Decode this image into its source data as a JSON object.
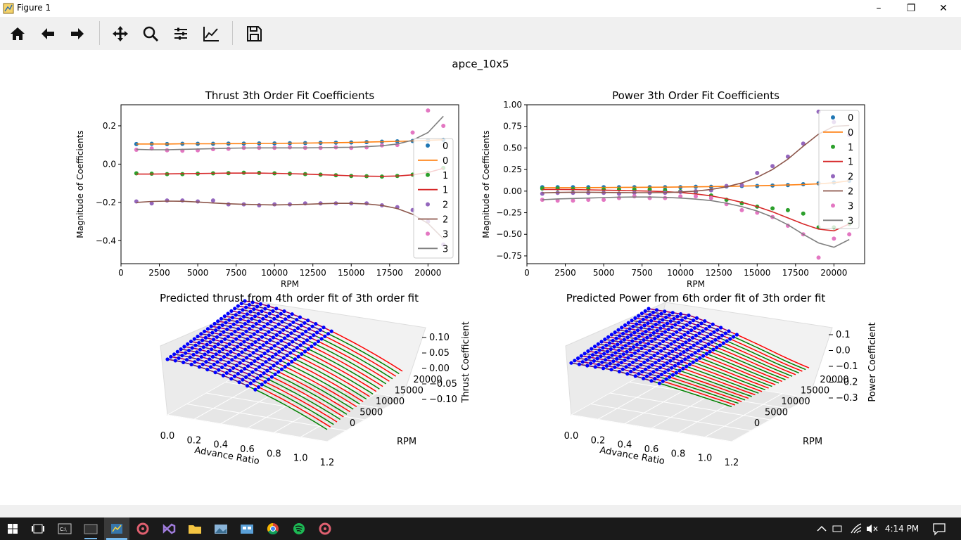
{
  "window": {
    "title": "Figure 1"
  },
  "toolbar": {
    "buttons": [
      "home-icon",
      "back-icon",
      "forward-icon",
      "pan-icon",
      "zoom-icon",
      "configure-subplots-icon",
      "edit-axis-icon",
      "save-icon"
    ]
  },
  "figure": {
    "suptitle": "apce_10x5"
  },
  "chart_data": [
    {
      "type": "scatter+line",
      "title": "Thrust 3th Order Fit Coefficients",
      "xlabel": "RPM",
      "ylabel": "Magnitude of Coefficients",
      "xlim": [
        0,
        22000
      ],
      "ylim": [
        -0.52,
        0.31
      ],
      "xticks": [
        0,
        2500,
        5000,
        7500,
        10000,
        12500,
        15000,
        17500,
        20000
      ],
      "yticks": [
        -0.4,
        -0.2,
        0.0,
        0.2
      ],
      "ytick_labels": [
        "−0.4",
        "−0.2",
        "0.0",
        "0.2"
      ],
      "x": [
        1000,
        2000,
        3000,
        4000,
        5000,
        6000,
        7000,
        8000,
        9000,
        10000,
        11000,
        12000,
        13000,
        14000,
        15000,
        16000,
        17000,
        18000,
        19000,
        20000,
        21000
      ],
      "series": [
        {
          "name": "0",
          "kind": "scatter",
          "color": "#1f77b4",
          "values": [
            0.105,
            0.106,
            0.105,
            0.106,
            0.106,
            0.106,
            0.107,
            0.107,
            0.108,
            0.108,
            0.109,
            0.11,
            0.111,
            0.112,
            0.113,
            0.115,
            0.117,
            0.119,
            0.121,
            0.124,
            0.127
          ]
        },
        {
          "name": "0",
          "kind": "line",
          "color": "#ff7f0e",
          "values": [
            0.105,
            0.105,
            0.105,
            0.106,
            0.106,
            0.106,
            0.107,
            0.107,
            0.108,
            0.108,
            0.109,
            0.11,
            0.111,
            0.112,
            0.113,
            0.115,
            0.117,
            0.119,
            0.121,
            0.124,
            0.127
          ]
        },
        {
          "name": "1",
          "kind": "scatter",
          "color": "#2ca02c",
          "values": [
            -0.048,
            -0.05,
            -0.052,
            -0.052,
            -0.05,
            -0.048,
            -0.047,
            -0.045,
            -0.046,
            -0.048,
            -0.05,
            -0.052,
            -0.055,
            -0.058,
            -0.062,
            -0.063,
            -0.065,
            -0.062,
            -0.055,
            -0.045,
            -0.02
          ]
        },
        {
          "name": "1",
          "kind": "line",
          "color": "#d62728",
          "values": [
            -0.052,
            -0.052,
            -0.051,
            -0.05,
            -0.049,
            -0.048,
            -0.047,
            -0.047,
            -0.047,
            -0.048,
            -0.05,
            -0.052,
            -0.055,
            -0.058,
            -0.061,
            -0.063,
            -0.064,
            -0.062,
            -0.056,
            -0.044,
            -0.022
          ]
        },
        {
          "name": "2",
          "kind": "scatter",
          "color": "#9467bd",
          "values": [
            -0.195,
            -0.205,
            -0.19,
            -0.19,
            -0.195,
            -0.19,
            -0.21,
            -0.21,
            -0.215,
            -0.21,
            -0.21,
            -0.205,
            -0.205,
            -0.205,
            -0.205,
            -0.205,
            -0.215,
            -0.225,
            -0.24,
            -0.3,
            -0.42
          ]
        },
        {
          "name": "2",
          "kind": "line",
          "color": "#8c564b",
          "values": [
            -0.2,
            -0.195,
            -0.193,
            -0.194,
            -0.198,
            -0.203,
            -0.207,
            -0.21,
            -0.212,
            -0.213,
            -0.212,
            -0.21,
            -0.207,
            -0.205,
            -0.205,
            -0.208,
            -0.216,
            -0.232,
            -0.262,
            -0.31,
            -0.39
          ]
        },
        {
          "name": "3",
          "kind": "scatter",
          "color": "#e377c2",
          "values": [
            0.075,
            0.082,
            0.072,
            0.07,
            0.072,
            0.078,
            0.08,
            0.085,
            0.085,
            0.085,
            0.088,
            0.085,
            0.085,
            0.088,
            0.085,
            0.088,
            0.098,
            0.1,
            0.165,
            0.28,
            0.2
          ]
        },
        {
          "name": "3",
          "kind": "line",
          "color": "#7f7f7f",
          "values": [
            0.077,
            0.075,
            0.075,
            0.077,
            0.079,
            0.081,
            0.083,
            0.084,
            0.085,
            0.085,
            0.085,
            0.085,
            0.086,
            0.087,
            0.088,
            0.091,
            0.096,
            0.105,
            0.125,
            0.165,
            0.25
          ]
        }
      ],
      "legend": "right"
    },
    {
      "type": "scatter+line",
      "title": "Power 3th Order Fit Coefficients",
      "xlabel": "RPM",
      "ylabel": "Magnitude of Coefficients",
      "xlim": [
        0,
        22000
      ],
      "ylim": [
        -0.84,
        1.0
      ],
      "xticks": [
        0,
        2500,
        5000,
        7500,
        10000,
        12500,
        15000,
        17500,
        20000
      ],
      "yticks": [
        -0.75,
        -0.5,
        -0.25,
        0.0,
        0.25,
        0.5,
        0.75,
        1.0
      ],
      "ytick_labels": [
        "−0.75",
        "−0.50",
        "−0.25",
        "0.00",
        "0.25",
        "0.50",
        "0.75",
        "1.00"
      ],
      "x": [
        1000,
        2000,
        3000,
        4000,
        5000,
        6000,
        7000,
        8000,
        9000,
        10000,
        11000,
        12000,
        13000,
        14000,
        15000,
        16000,
        17000,
        18000,
        19000,
        20000,
        21000
      ],
      "series": [
        {
          "name": "0",
          "kind": "scatter",
          "color": "#1f77b4",
          "values": [
            0.045,
            0.045,
            0.045,
            0.045,
            0.045,
            0.045,
            0.045,
            0.045,
            0.045,
            0.045,
            0.05,
            0.05,
            0.055,
            0.06,
            0.06,
            0.065,
            0.07,
            0.08,
            0.09,
            0.1,
            0.12
          ]
        },
        {
          "name": "0",
          "kind": "line",
          "color": "#ff7f0e",
          "values": [
            0.04,
            0.04,
            0.04,
            0.041,
            0.042,
            0.043,
            0.044,
            0.045,
            0.046,
            0.048,
            0.05,
            0.052,
            0.055,
            0.058,
            0.062,
            0.066,
            0.071,
            0.077,
            0.085,
            0.097,
            0.12
          ]
        },
        {
          "name": "1",
          "kind": "scatter",
          "color": "#2ca02c",
          "values": [
            0.03,
            0.03,
            0.025,
            0.025,
            0.02,
            0.02,
            0.02,
            0.02,
            0.01,
            0.0,
            -0.01,
            -0.05,
            -0.1,
            -0.14,
            -0.18,
            -0.2,
            -0.22,
            -0.26,
            -0.42,
            -0.42,
            -0.38
          ]
        },
        {
          "name": "1",
          "kind": "line",
          "color": "#d62728",
          "values": [
            0.02,
            0.02,
            0.018,
            0.015,
            0.012,
            0.008,
            0.004,
            0.0,
            -0.006,
            -0.016,
            -0.032,
            -0.055,
            -0.088,
            -0.13,
            -0.18,
            -0.24,
            -0.31,
            -0.38,
            -0.44,
            -0.46,
            -0.38
          ]
        },
        {
          "name": "2",
          "kind": "scatter",
          "color": "#9467bd",
          "values": [
            -0.03,
            -0.02,
            -0.02,
            -0.02,
            -0.02,
            -0.03,
            -0.02,
            -0.02,
            -0.02,
            -0.01,
            0.0,
            0.01,
            0.06,
            0.07,
            0.21,
            0.29,
            0.4,
            0.55,
            0.92,
            0.8,
            0.65
          ]
        },
        {
          "name": "2",
          "kind": "line",
          "color": "#8c564b",
          "values": [
            -0.02,
            -0.015,
            -0.013,
            -0.013,
            -0.015,
            -0.017,
            -0.018,
            -0.018,
            -0.016,
            -0.01,
            0.0,
            0.02,
            0.05,
            0.095,
            0.16,
            0.25,
            0.37,
            0.52,
            0.66,
            0.75,
            0.76
          ]
        },
        {
          "name": "3",
          "kind": "scatter",
          "color": "#e377c2",
          "values": [
            -0.1,
            -0.11,
            -0.11,
            -0.1,
            -0.1,
            -0.08,
            -0.06,
            -0.08,
            -0.08,
            -0.06,
            -0.06,
            -0.08,
            -0.15,
            -0.22,
            -0.25,
            -0.3,
            -0.4,
            -0.5,
            -0.77,
            -0.55,
            -0.5
          ]
        },
        {
          "name": "3",
          "kind": "line",
          "color": "#7f7f7f",
          "values": [
            -0.1,
            -0.09,
            -0.085,
            -0.08,
            -0.075,
            -0.07,
            -0.068,
            -0.068,
            -0.072,
            -0.08,
            -0.093,
            -0.11,
            -0.14,
            -0.18,
            -0.23,
            -0.3,
            -0.39,
            -0.5,
            -0.6,
            -0.65,
            -0.56
          ]
        }
      ],
      "legend": "right"
    },
    {
      "type": "surface3d",
      "title": "Predicted thrust from 4th order fit of 3th order fit",
      "xlabel": "Advance Ratio",
      "ylabel": "RPM",
      "zlabel": "Thrust Coefficient",
      "xticks": [
        "0.0",
        "0.2",
        "0.4",
        "0.6",
        "0.8",
        "1.0",
        "1.2"
      ],
      "yticks": [
        "0",
        "5000",
        "10000",
        "15000",
        "20000"
      ],
      "zticks": [
        "−0.10",
        "−0.05",
        "0.00",
        "0.05",
        "0.10"
      ],
      "colors": {
        "scatter": "#0000ff",
        "fit": "#ff0000",
        "fit_alt": "#008000",
        "data_line": "#800080"
      }
    },
    {
      "type": "surface3d",
      "title": "Predicted Power from 6th order fit of 3th order fit",
      "xlabel": "Advance Ratio",
      "ylabel": "RPM",
      "zlabel": "Power Coefficient",
      "xticks": [
        "0.0",
        "0.2",
        "0.4",
        "0.6",
        "0.8",
        "1.0",
        "1.2"
      ],
      "yticks": [
        "0",
        "5000",
        "10000",
        "15000",
        "20000"
      ],
      "zticks": [
        "−0.3",
        "−0.2",
        "−0.1",
        "0.0",
        "0.1"
      ],
      "colors": {
        "scatter": "#0000ff",
        "fit": "#ff0000",
        "fit_alt": "#008000",
        "data_line": "#800080"
      }
    }
  ],
  "taskbar": {
    "clock": "4:14 PM"
  }
}
